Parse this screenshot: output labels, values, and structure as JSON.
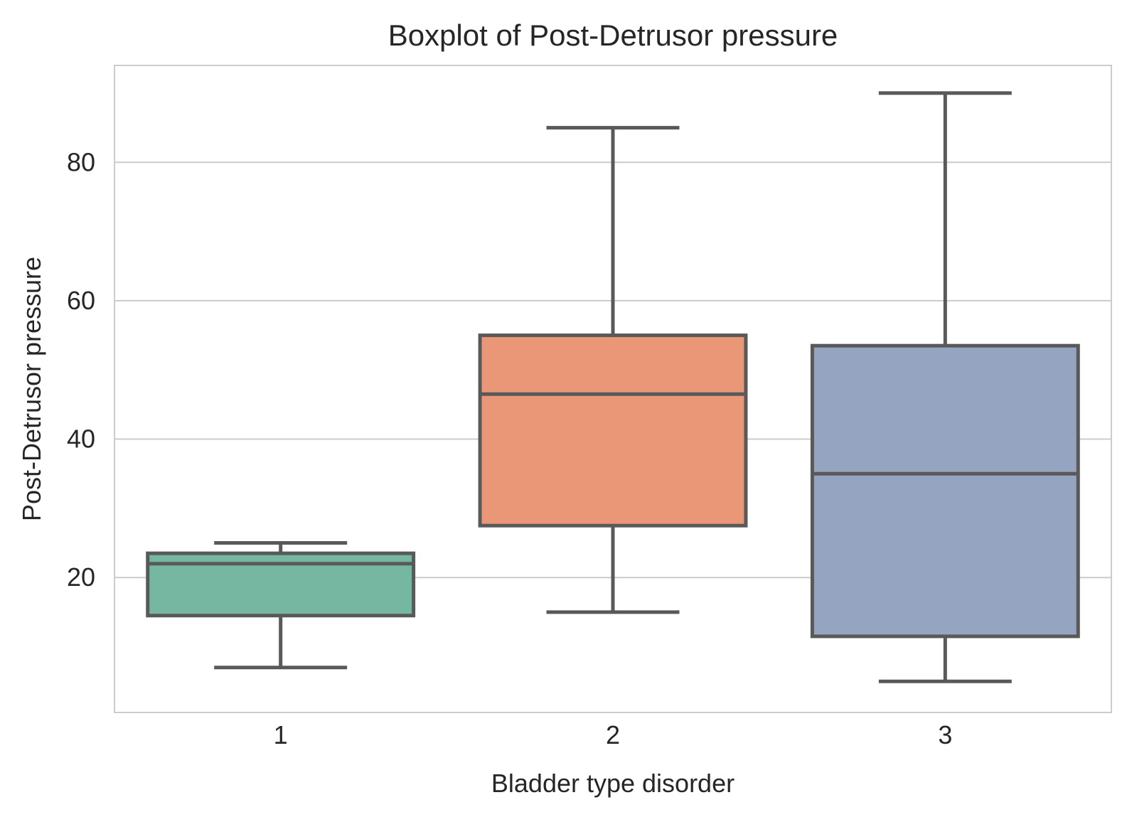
{
  "chart_data": {
    "type": "box",
    "title": "Boxplot of Post-Detrusor pressure",
    "xlabel": "Bladder type disorder",
    "ylabel": "Post-Detrusor pressure",
    "categories": [
      "1",
      "2",
      "3"
    ],
    "ylim": [
      0.5,
      94.0
    ],
    "yticks": [
      20,
      40,
      60,
      80
    ],
    "grid": true,
    "boxes": [
      {
        "category": "1",
        "whisker_low": 7.0,
        "q1": 14.5,
        "median": 22.0,
        "q3": 23.5,
        "whisker_high": 25.0,
        "color": "#76b7a2"
      },
      {
        "category": "2",
        "whisker_low": 15.0,
        "q1": 27.5,
        "median": 46.5,
        "q3": 55.0,
        "whisker_high": 85.0,
        "color": "#e99777"
      },
      {
        "category": "3",
        "whisker_low": 5.0,
        "q1": 11.5,
        "median": 35.0,
        "q3": 53.5,
        "whisker_high": 90.0,
        "color": "#95a4c1"
      }
    ],
    "colors": {
      "line": "#595959",
      "grid": "#cccccc",
      "frame": "#cccccc"
    }
  }
}
